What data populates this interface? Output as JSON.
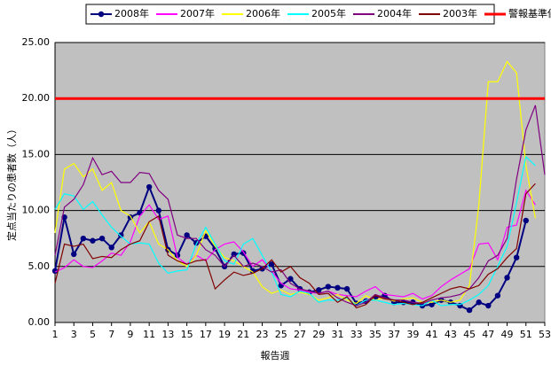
{
  "chart_data": {
    "type": "line",
    "x_label": "報告週",
    "y_label": "定点当たりの患者数（人）",
    "x": [
      1,
      2,
      3,
      4,
      5,
      6,
      7,
      8,
      9,
      10,
      11,
      12,
      13,
      14,
      15,
      16,
      17,
      18,
      19,
      20,
      21,
      22,
      23,
      24,
      25,
      26,
      27,
      28,
      29,
      30,
      31,
      32,
      33,
      34,
      35,
      36,
      37,
      38,
      39,
      40,
      41,
      42,
      43,
      44,
      45,
      46,
      47,
      48,
      49,
      50,
      51,
      52,
      53
    ],
    "xlim": [
      1,
      53
    ],
    "xticks": [
      1,
      3,
      5,
      7,
      9,
      11,
      13,
      15,
      17,
      19,
      21,
      23,
      25,
      27,
      29,
      31,
      33,
      35,
      37,
      39,
      41,
      43,
      45,
      47,
      49,
      51,
      53
    ],
    "ylim": [
      0,
      25
    ],
    "yticks": [
      {
        "value": 0,
        "label": "0.00"
      },
      {
        "value": 5,
        "label": "5.00"
      },
      {
        "value": 10,
        "label": "10.00"
      },
      {
        "value": 15,
        "label": "15.00"
      },
      {
        "value": 20,
        "label": "20.00"
      },
      {
        "value": 25,
        "label": "25.00"
      }
    ],
    "grid": true,
    "legend": "top",
    "series": [
      {
        "name": "2008年",
        "color": "#000080",
        "marker": "circle",
        "values": [
          4.6,
          9.4,
          6.1,
          7.5,
          7.3,
          7.5,
          6.7,
          7.8,
          9.4,
          9.8,
          12.1,
          10.0,
          6.5,
          6.0,
          7.8,
          7.1,
          7.7,
          6.6,
          5.0,
          6.1,
          6.2,
          4.6,
          4.8,
          5.2,
          3.3,
          3.9,
          3.0,
          2.7,
          2.9,
          3.2,
          3.1,
          3.0,
          1.7,
          1.9,
          2.2,
          2.4,
          1.8,
          1.8,
          1.8,
          1.5,
          1.6,
          2.0,
          1.8,
          1.5,
          1.1,
          1.8,
          1.5,
          2.4,
          4.0,
          5.8,
          9.1,
          null,
          null
        ]
      },
      {
        "name": "2007年",
        "color": "#ff00ff",
        "values": [
          4.5,
          4.9,
          5.6,
          5.0,
          4.9,
          5.5,
          6.2,
          6.0,
          7.2,
          9.5,
          10.5,
          9.2,
          9.5,
          5.8,
          5.2,
          6.0,
          5.5,
          6.5,
          7.0,
          7.2,
          6.3,
          5.0,
          5.6,
          4.6,
          3.5,
          3.0,
          2.9,
          2.7,
          2.6,
          2.8,
          2.5,
          2.4,
          2.3,
          2.8,
          3.2,
          2.5,
          2.4,
          2.3,
          2.6,
          2.1,
          2.4,
          3.2,
          3.8,
          4.3,
          4.8,
          7.0,
          7.1,
          5.6,
          8.5,
          8.7,
          11.8,
          10.5,
          null
        ]
      },
      {
        "name": "2006年",
        "color": "#ffff00",
        "values": [
          8.0,
          13.7,
          14.2,
          13.0,
          13.7,
          11.8,
          12.5,
          10.0,
          9.5,
          8.0,
          9.0,
          7.0,
          6.5,
          5.5,
          5.0,
          6.0,
          8.2,
          6.8,
          5.8,
          5.5,
          5.0,
          4.5,
          3.2,
          2.6,
          2.9,
          2.5,
          2.7,
          2.5,
          2.0,
          2.2,
          2.5,
          2.0,
          1.7,
          2.4,
          2.0,
          2.2,
          1.9,
          2.1,
          2.2,
          1.8,
          1.8,
          2.0,
          1.8,
          2.0,
          3.3,
          10.5,
          21.5,
          21.5,
          23.3,
          22.3,
          14.0,
          9.3,
          null
        ]
      },
      {
        "name": "2005年",
        "color": "#00ffff",
        "values": [
          10.1,
          11.5,
          11.3,
          10.1,
          10.8,
          9.6,
          8.5,
          7.7,
          7.0,
          7.1,
          7.0,
          5.3,
          4.4,
          4.6,
          4.7,
          7.0,
          8.5,
          7.0,
          5.5,
          5.2,
          7.0,
          7.5,
          6.0,
          4.5,
          2.5,
          2.3,
          2.8,
          2.6,
          1.8,
          2.0,
          2.0,
          2.2,
          1.5,
          2.0,
          2.0,
          1.8,
          1.6,
          1.7,
          1.6,
          1.5,
          2.0,
          1.5,
          1.6,
          1.6,
          2.0,
          2.5,
          3.3,
          5.0,
          6.8,
          10.7,
          14.8,
          14.0,
          null
        ]
      },
      {
        "name": "2004年",
        "color": "#800080",
        "values": [
          6.0,
          10.3,
          11.0,
          12.3,
          14.7,
          13.2,
          13.5,
          12.5,
          12.5,
          13.4,
          13.3,
          11.8,
          11.0,
          7.8,
          7.5,
          7.5,
          6.5,
          6.0,
          5.0,
          6.0,
          5.0,
          5.3,
          5.0,
          4.5,
          4.7,
          3.5,
          3.0,
          2.8,
          2.6,
          2.8,
          2.2,
          1.8,
          1.5,
          1.8,
          2.5,
          2.2,
          2.0,
          2.0,
          1.8,
          1.7,
          2.0,
          2.2,
          2.3,
          2.5,
          3.0,
          4.0,
          5.5,
          6.0,
          7.5,
          12.8,
          17.2,
          19.4,
          13.2
        ]
      },
      {
        "name": "2003年",
        "color": "#800000",
        "values": [
          3.5,
          7.0,
          6.8,
          7.0,
          5.7,
          5.9,
          5.8,
          6.5,
          7.0,
          7.3,
          9.0,
          9.5,
          6.0,
          5.5,
          5.2,
          5.5,
          5.6,
          3.0,
          3.8,
          4.5,
          4.2,
          4.4,
          4.8,
          5.6,
          4.5,
          5.0,
          4.0,
          3.5,
          2.5,
          2.6,
          1.8,
          2.3,
          1.3,
          1.6,
          2.4,
          2.1,
          2.0,
          1.8,
          1.6,
          1.8,
          2.2,
          2.6,
          3.0,
          3.2,
          3.0,
          3.3,
          4.3,
          4.8,
          5.8,
          6.6,
          11.5,
          12.4,
          null
        ]
      },
      {
        "name": "警報基準値",
        "color": "#ff0000",
        "width": 3,
        "values": [
          20,
          20,
          20,
          20,
          20,
          20,
          20,
          20,
          20,
          20,
          20,
          20,
          20,
          20,
          20,
          20,
          20,
          20,
          20,
          20,
          20,
          20,
          20,
          20,
          20,
          20,
          20,
          20,
          20,
          20,
          20,
          20,
          20,
          20,
          20,
          20,
          20,
          20,
          20,
          20,
          20,
          20,
          20,
          20,
          20,
          20,
          20,
          20,
          20,
          20,
          20,
          20,
          20
        ]
      }
    ]
  }
}
